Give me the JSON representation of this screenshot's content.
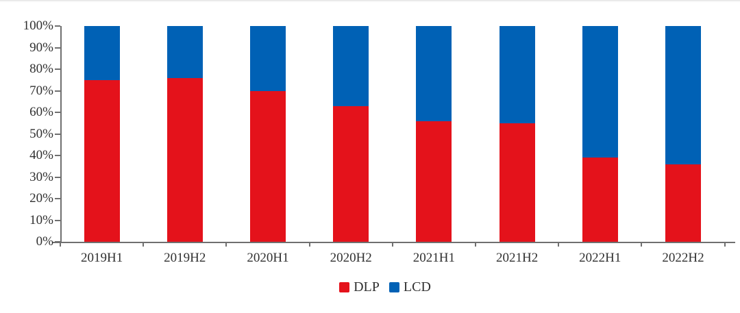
{
  "chart_data": {
    "type": "bar",
    "stacked": true,
    "percent_stacked": true,
    "title": "",
    "xlabel": "",
    "ylabel": "",
    "categories": [
      "2019H1",
      "2019H2",
      "2020H1",
      "2020H2",
      "2021H1",
      "2021H2",
      "2022H1",
      "2022H2"
    ],
    "series": [
      {
        "name": "DLP",
        "color": "#e4121b",
        "values": [
          75,
          76,
          70,
          63,
          56,
          55,
          39,
          36
        ]
      },
      {
        "name": "LCD",
        "color": "#0061b5",
        "values": [
          25,
          24,
          30,
          37,
          44,
          45,
          61,
          64
        ]
      }
    ],
    "ylim": [
      0,
      100
    ],
    "ytick_step": 10,
    "ytick_labels": [
      "0%",
      "10%",
      "20%",
      "30%",
      "40%",
      "50%",
      "60%",
      "70%",
      "80%",
      "90%",
      "100%"
    ],
    "grid": false,
    "legend_position": "bottom"
  },
  "colors": {
    "dlp": "#e4121b",
    "lcd": "#0061b5",
    "axis": "#6f6f6f",
    "text": "#303030",
    "background": "#ffffff",
    "top_rule": "#f6f6f6"
  }
}
